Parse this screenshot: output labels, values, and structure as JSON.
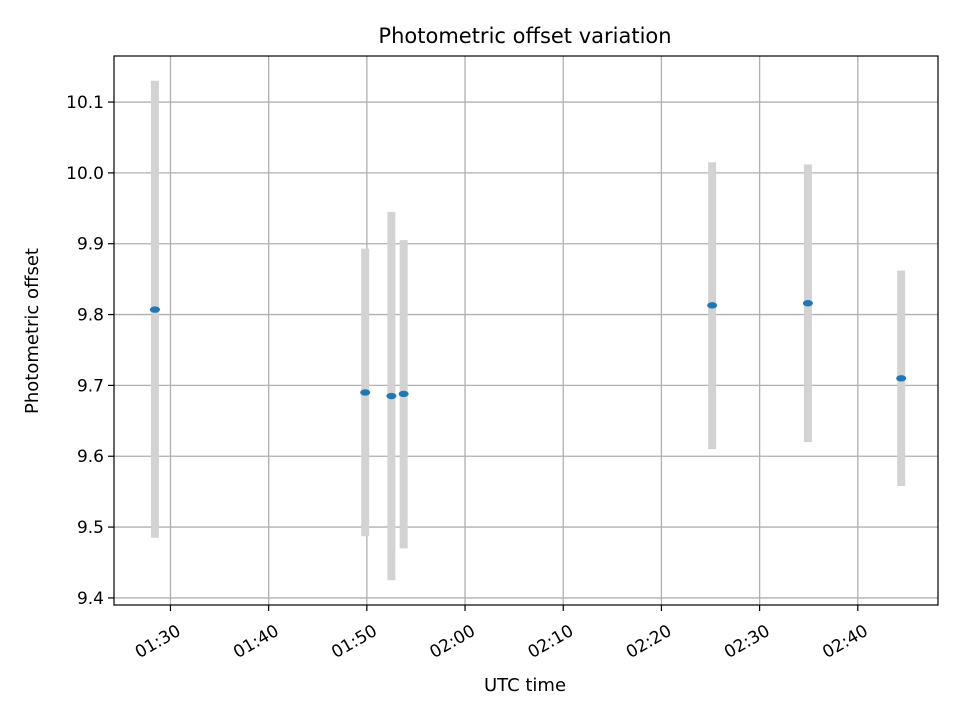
{
  "chart_data": {
    "type": "scatter",
    "title": "Photometric offset variation",
    "xlabel": "UTC time",
    "ylabel": "Photometric offset",
    "xlim": [
      "01:24:15",
      "02:48:10"
    ],
    "ylim": [
      9.39,
      10.165
    ],
    "grid": true,
    "x_ticks": [
      "01:30",
      "01:40",
      "01:50",
      "02:00",
      "02:10",
      "02:20",
      "02:30",
      "02:40"
    ],
    "y_ticks": [
      "9.4",
      "9.5",
      "9.6",
      "9.7",
      "9.8",
      "9.9",
      "10.0",
      "10.1"
    ],
    "point_color": "#1f77b4",
    "errorbar_color": "#d3d3d3",
    "series": [
      {
        "points": [
          {
            "x": "01:28:25",
            "y": 9.807,
            "ylow": 9.485,
            "yhigh": 10.13
          },
          {
            "x": "01:49:50",
            "y": 9.69,
            "ylow": 9.487,
            "yhigh": 9.893
          },
          {
            "x": "01:52:30",
            "y": 9.685,
            "ylow": 9.425,
            "yhigh": 9.945
          },
          {
            "x": "01:53:45",
            "y": 9.688,
            "ylow": 9.47,
            "yhigh": 9.905
          },
          {
            "x": "02:25:10",
            "y": 9.813,
            "ylow": 9.61,
            "yhigh": 10.015
          },
          {
            "x": "02:34:55",
            "y": 9.816,
            "ylow": 9.62,
            "yhigh": 10.012
          },
          {
            "x": "02:44:25",
            "y": 9.71,
            "ylow": 9.558,
            "yhigh": 9.862
          }
        ]
      }
    ]
  }
}
